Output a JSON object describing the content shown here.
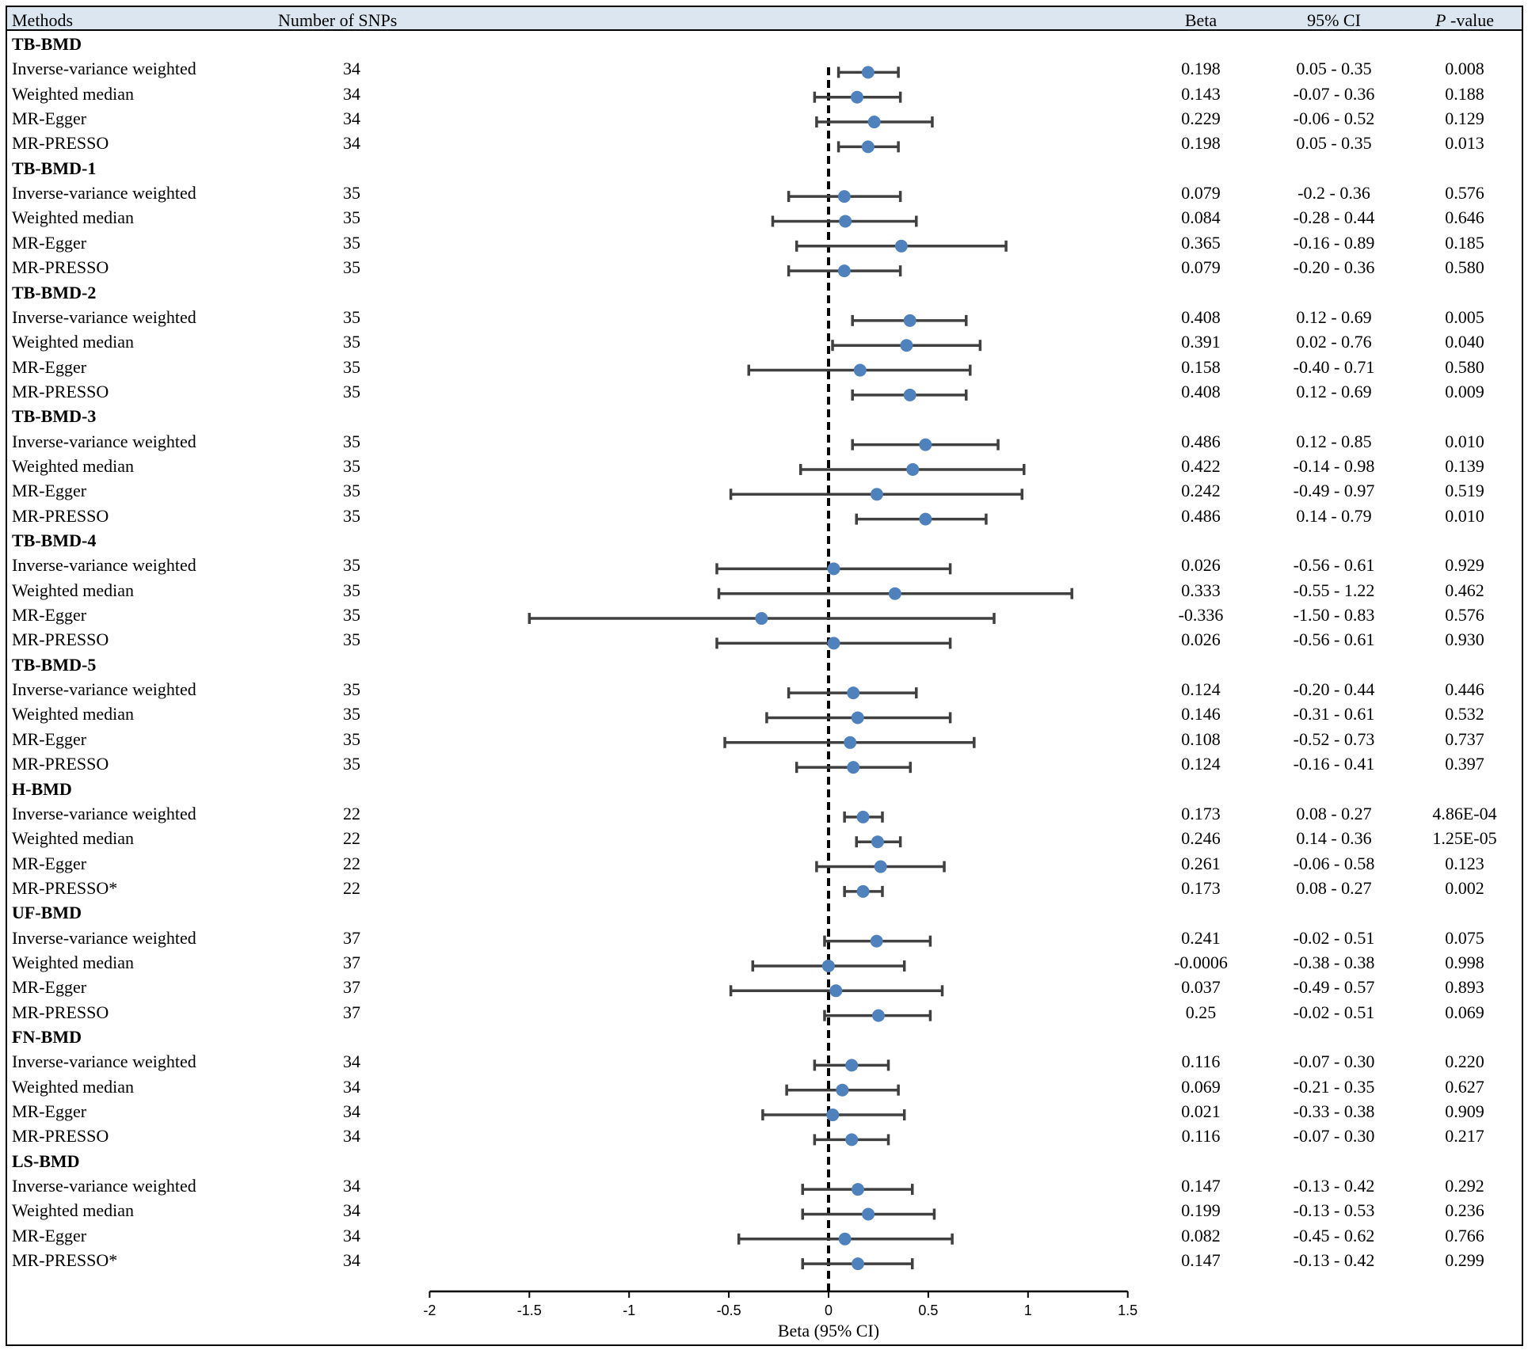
{
  "headers": {
    "methods": "Methods",
    "snps": "Number of SNPs",
    "beta": "Beta",
    "ci": "95% CI",
    "p_italic": "P",
    "p_rest": " -value"
  },
  "chart_data": {
    "type": "forest",
    "xlabel": "Beta (95% CI)",
    "xlim": [
      -2,
      1.5
    ],
    "ticks": [
      -2,
      -1.5,
      -1,
      -0.5,
      0,
      0.5,
      1,
      1.5
    ],
    "tick_labels": [
      "-2",
      "-1.5",
      "-1",
      "-0.5",
      "0",
      "0.5",
      "1",
      "1.5"
    ],
    "reference_line": 0,
    "rows": [
      {
        "type": "cat",
        "label": "TB-BMD"
      },
      {
        "type": "est",
        "method": "Inverse-variance weighted",
        "snps": "34",
        "beta": 0.198,
        "lo": 0.05,
        "hi": 0.35,
        "beta_text": "0.198",
        "ci_text": "0.05 - 0.35",
        "p_text": "0.008"
      },
      {
        "type": "est",
        "method": "Weighted median",
        "snps": "34",
        "beta": 0.143,
        "lo": -0.07,
        "hi": 0.36,
        "beta_text": "0.143",
        "ci_text": "-0.07 - 0.36",
        "p_text": "0.188"
      },
      {
        "type": "est",
        "method": "MR-Egger",
        "snps": "34",
        "beta": 0.229,
        "lo": -0.06,
        "hi": 0.52,
        "beta_text": "0.229",
        "ci_text": "-0.06 - 0.52",
        "p_text": "0.129"
      },
      {
        "type": "est",
        "method": "MR-PRESSO",
        "snps": "34",
        "beta": 0.198,
        "lo": 0.05,
        "hi": 0.35,
        "beta_text": "0.198",
        "ci_text": "0.05 - 0.35",
        "p_text": "0.013"
      },
      {
        "type": "cat",
        "label": "TB-BMD-1"
      },
      {
        "type": "est",
        "method": "Inverse-variance weighted",
        "snps": "35",
        "beta": 0.079,
        "lo": -0.2,
        "hi": 0.36,
        "beta_text": "0.079",
        "ci_text": "-0.2 - 0.36",
        "p_text": "0.576"
      },
      {
        "type": "est",
        "method": "Weighted median",
        "snps": "35",
        "beta": 0.084,
        "lo": -0.28,
        "hi": 0.44,
        "beta_text": "0.084",
        "ci_text": "-0.28 - 0.44",
        "p_text": "0.646"
      },
      {
        "type": "est",
        "method": "MR-Egger",
        "snps": "35",
        "beta": 0.365,
        "lo": -0.16,
        "hi": 0.89,
        "beta_text": "0.365",
        "ci_text": "-0.16 - 0.89",
        "p_text": "0.185"
      },
      {
        "type": "est",
        "method": "MR-PRESSO",
        "snps": "35",
        "beta": 0.079,
        "lo": -0.2,
        "hi": 0.36,
        "beta_text": "0.079",
        "ci_text": "-0.20 - 0.36",
        "p_text": "0.580"
      },
      {
        "type": "cat",
        "label": "TB-BMD-2"
      },
      {
        "type": "est",
        "method": "Inverse-variance weighted",
        "snps": "35",
        "beta": 0.408,
        "lo": 0.12,
        "hi": 0.69,
        "beta_text": "0.408",
        "ci_text": "0.12 - 0.69",
        "p_text": "0.005"
      },
      {
        "type": "est",
        "method": "Weighted median",
        "snps": "35",
        "beta": 0.391,
        "lo": 0.02,
        "hi": 0.76,
        "beta_text": "0.391",
        "ci_text": "0.02 - 0.76",
        "p_text": "0.040"
      },
      {
        "type": "est",
        "method": "MR-Egger",
        "snps": "35",
        "beta": 0.158,
        "lo": -0.4,
        "hi": 0.71,
        "beta_text": "0.158",
        "ci_text": "-0.40 - 0.71",
        "p_text": "0.580"
      },
      {
        "type": "est",
        "method": "MR-PRESSO",
        "snps": "35",
        "beta": 0.408,
        "lo": 0.12,
        "hi": 0.69,
        "beta_text": "0.408",
        "ci_text": "0.12 - 0.69",
        "p_text": "0.009"
      },
      {
        "type": "cat",
        "label": "TB-BMD-3"
      },
      {
        "type": "est",
        "method": "Inverse-variance weighted",
        "snps": "35",
        "beta": 0.486,
        "lo": 0.12,
        "hi": 0.85,
        "beta_text": "0.486",
        "ci_text": "0.12 - 0.85",
        "p_text": "0.010"
      },
      {
        "type": "est",
        "method": "Weighted median",
        "snps": "35",
        "beta": 0.422,
        "lo": -0.14,
        "hi": 0.98,
        "beta_text": "0.422",
        "ci_text": "-0.14 - 0.98",
        "p_text": "0.139"
      },
      {
        "type": "est",
        "method": "MR-Egger",
        "snps": "35",
        "beta": 0.242,
        "lo": -0.49,
        "hi": 0.97,
        "beta_text": "0.242",
        "ci_text": "-0.49 - 0.97",
        "p_text": "0.519"
      },
      {
        "type": "est",
        "method": "MR-PRESSO",
        "snps": "35",
        "beta": 0.486,
        "lo": 0.14,
        "hi": 0.79,
        "beta_text": "0.486",
        "ci_text": "0.14 - 0.79",
        "p_text": "0.010"
      },
      {
        "type": "cat",
        "label": "TB-BMD-4"
      },
      {
        "type": "est",
        "method": "Inverse-variance weighted",
        "snps": "35",
        "beta": 0.026,
        "lo": -0.56,
        "hi": 0.61,
        "beta_text": "0.026",
        "ci_text": "-0.56 - 0.61",
        "p_text": "0.929"
      },
      {
        "type": "est",
        "method": "Weighted median",
        "snps": "35",
        "beta": 0.333,
        "lo": -0.55,
        "hi": 1.22,
        "beta_text": "0.333",
        "ci_text": "-0.55 - 1.22",
        "p_text": "0.462"
      },
      {
        "type": "est",
        "method": "MR-Egger",
        "snps": "35",
        "beta": -0.336,
        "lo": -1.5,
        "hi": 0.83,
        "beta_text": "-0.336",
        "ci_text": "-1.50 - 0.83",
        "p_text": "0.576"
      },
      {
        "type": "est",
        "method": "MR-PRESSO",
        "snps": "35",
        "beta": 0.026,
        "lo": -0.56,
        "hi": 0.61,
        "beta_text": "0.026",
        "ci_text": "-0.56 - 0.61",
        "p_text": "0.930"
      },
      {
        "type": "cat",
        "label": "TB-BMD-5"
      },
      {
        "type": "est",
        "method": "Inverse-variance weighted",
        "snps": "35",
        "beta": 0.124,
        "lo": -0.2,
        "hi": 0.44,
        "beta_text": "0.124",
        "ci_text": "-0.20 - 0.44",
        "p_text": "0.446"
      },
      {
        "type": "est",
        "method": "Weighted median",
        "snps": "35",
        "beta": 0.146,
        "lo": -0.31,
        "hi": 0.61,
        "beta_text": "0.146",
        "ci_text": "-0.31 - 0.61",
        "p_text": "0.532"
      },
      {
        "type": "est",
        "method": "MR-Egger",
        "snps": "35",
        "beta": 0.108,
        "lo": -0.52,
        "hi": 0.73,
        "beta_text": "0.108",
        "ci_text": "-0.52 - 0.73",
        "p_text": "0.737"
      },
      {
        "type": "est",
        "method": "MR-PRESSO",
        "snps": "35",
        "beta": 0.124,
        "lo": -0.16,
        "hi": 0.41,
        "beta_text": "0.124",
        "ci_text": "-0.16 - 0.41",
        "p_text": "0.397"
      },
      {
        "type": "cat",
        "label": "H-BMD"
      },
      {
        "type": "est",
        "method": "Inverse-variance weighted",
        "snps": "22",
        "beta": 0.173,
        "lo": 0.08,
        "hi": 0.27,
        "beta_text": "0.173",
        "ci_text": "0.08 - 0.27",
        "p_text": "4.86E-04"
      },
      {
        "type": "est",
        "method": "Weighted median",
        "snps": "22",
        "beta": 0.246,
        "lo": 0.14,
        "hi": 0.36,
        "beta_text": "0.246",
        "ci_text": "0.14 - 0.36",
        "p_text": "1.25E-05"
      },
      {
        "type": "est",
        "method": "MR-Egger",
        "snps": "22",
        "beta": 0.261,
        "lo": -0.06,
        "hi": 0.58,
        "beta_text": "0.261",
        "ci_text": "-0.06 - 0.58",
        "p_text": "0.123"
      },
      {
        "type": "est",
        "method": "MR-PRESSO*",
        "snps": "22",
        "beta": 0.173,
        "lo": 0.08,
        "hi": 0.27,
        "beta_text": "0.173",
        "ci_text": "0.08 - 0.27",
        "p_text": "0.002"
      },
      {
        "type": "cat",
        "label": "UF-BMD"
      },
      {
        "type": "est",
        "method": "Inverse-variance weighted",
        "snps": "37",
        "beta": 0.241,
        "lo": -0.02,
        "hi": 0.51,
        "beta_text": "0.241",
        "ci_text": "-0.02 - 0.51",
        "p_text": "0.075"
      },
      {
        "type": "est",
        "method": "Weighted median",
        "snps": "37",
        "beta": -0.0006,
        "lo": -0.38,
        "hi": 0.38,
        "beta_text": "-0.0006",
        "ci_text": "-0.38 - 0.38",
        "p_text": "0.998"
      },
      {
        "type": "est",
        "method": "MR-Egger",
        "snps": "37",
        "beta": 0.037,
        "lo": -0.49,
        "hi": 0.57,
        "beta_text": "0.037",
        "ci_text": "-0.49 - 0.57",
        "p_text": "0.893"
      },
      {
        "type": "est",
        "method": "MR-PRESSO",
        "snps": "37",
        "beta": 0.25,
        "lo": -0.02,
        "hi": 0.51,
        "beta_text": "0.25",
        "ci_text": "-0.02 - 0.51",
        "p_text": "0.069"
      },
      {
        "type": "cat",
        "label": "FN-BMD"
      },
      {
        "type": "est",
        "method": "Inverse-variance weighted",
        "snps": "34",
        "beta": 0.116,
        "lo": -0.07,
        "hi": 0.3,
        "beta_text": "0.116",
        "ci_text": "-0.07 - 0.30",
        "p_text": "0.220"
      },
      {
        "type": "est",
        "method": "Weighted median",
        "snps": "34",
        "beta": 0.069,
        "lo": -0.21,
        "hi": 0.35,
        "beta_text": "0.069",
        "ci_text": "-0.21 - 0.35",
        "p_text": "0.627"
      },
      {
        "type": "est",
        "method": "MR-Egger",
        "snps": "34",
        "beta": 0.021,
        "lo": -0.33,
        "hi": 0.38,
        "beta_text": "0.021",
        "ci_text": "-0.33 - 0.38",
        "p_text": "0.909"
      },
      {
        "type": "est",
        "method": "MR-PRESSO",
        "snps": "34",
        "beta": 0.116,
        "lo": -0.07,
        "hi": 0.3,
        "beta_text": "0.116",
        "ci_text": "-0.07 - 0.30",
        "p_text": "0.217"
      },
      {
        "type": "cat",
        "label": "LS-BMD"
      },
      {
        "type": "est",
        "method": "Inverse-variance weighted",
        "snps": "34",
        "beta": 0.147,
        "lo": -0.13,
        "hi": 0.42,
        "beta_text": "0.147",
        "ci_text": "-0.13 - 0.42",
        "p_text": "0.292"
      },
      {
        "type": "est",
        "method": "Weighted median",
        "snps": "34",
        "beta": 0.199,
        "lo": -0.13,
        "hi": 0.53,
        "beta_text": "0.199",
        "ci_text": "-0.13 - 0.53",
        "p_text": "0.236"
      },
      {
        "type": "est",
        "method": "MR-Egger",
        "snps": "34",
        "beta": 0.082,
        "lo": -0.45,
        "hi": 0.62,
        "beta_text": "0.082",
        "ci_text": "-0.45 - 0.62",
        "p_text": "0.766"
      },
      {
        "type": "est",
        "method": "MR-PRESSO*",
        "snps": "34",
        "beta": 0.147,
        "lo": -0.13,
        "hi": 0.42,
        "beta_text": "0.147",
        "ci_text": "-0.13 - 0.42",
        "p_text": "0.299"
      }
    ]
  },
  "colors": {
    "point": "#4f81bd",
    "whisker": "#404040",
    "header_band": "#dce6f1"
  }
}
